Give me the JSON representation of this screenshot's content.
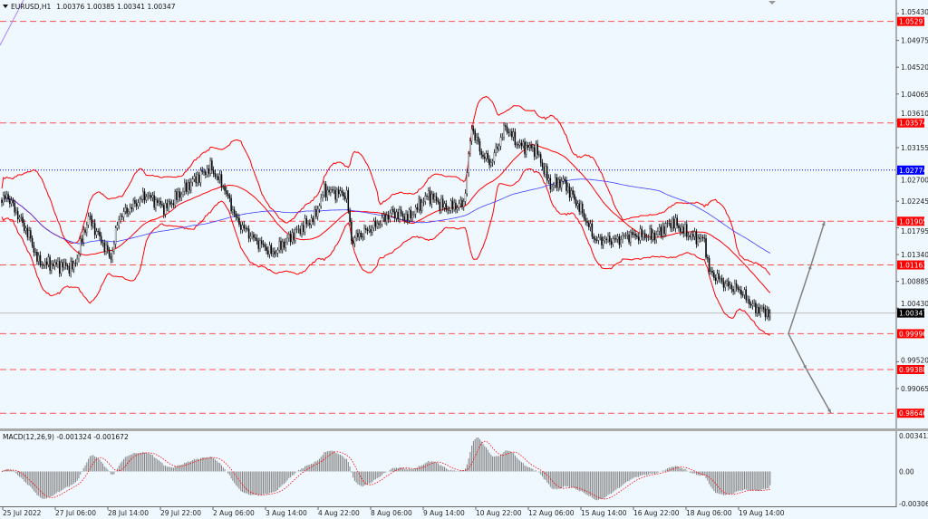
{
  "window": {
    "symbol_title": "EURUSD,H1",
    "ohlc": "1.00376 1.00385 1.00341 1.00347"
  },
  "colors": {
    "background": "#f0f8ff",
    "level_line": "#ff0000",
    "bollinger": "#ff0000",
    "moving_average": "#4040ff",
    "blue_level": "#0000ff",
    "current_price": "#000000",
    "macd_histogram": "#808080",
    "macd_signal": "#ff0000",
    "arrows": "#808080"
  },
  "chart_data": [
    {
      "type": "candlestick",
      "symbol": "EURUSD",
      "timeframe": "H1",
      "ylim": [
        0.98388,
        1.05661
      ],
      "grid": false,
      "y_ticks": [
        "1.05430",
        "1.04975",
        "1.04520",
        "1.04065",
        "1.03610",
        "1.03155",
        "1.02700",
        "1.02245",
        "1.01795",
        "1.01340",
        "1.00885",
        "1.00430",
        "0.99520",
        "0.99065"
      ],
      "x_ticks": [
        "25 Jul 2022",
        "27 Jul 06:00",
        "28 Jul 14:00",
        "29 Jul 22:00",
        "2 Aug 06:00",
        "3 Aug 14:00",
        "4 Aug 22:00",
        "8 Aug 06:00",
        "9 Aug 14:00",
        "10 Aug 22:00",
        "12 Aug 06:00",
        "15 Aug 14:00",
        "16 Aug 22:00",
        "18 Aug 06:00",
        "19 Aug 14:00"
      ],
      "approx_close_keypoints_bar_price": [
        [
          0,
          1.0222
        ],
        [
          3,
          1.02355
        ],
        [
          17,
          1.01663
        ],
        [
          23,
          1.01202
        ],
        [
          45,
          1.01125
        ],
        [
          54,
          1.01971
        ],
        [
          68,
          1.01279
        ],
        [
          73,
          1.01971
        ],
        [
          90,
          1.02355
        ],
        [
          102,
          1.02125
        ],
        [
          119,
          1.02586
        ],
        [
          130,
          1.02817
        ],
        [
          138,
          1.02509
        ],
        [
          147,
          1.01894
        ],
        [
          158,
          1.01587
        ],
        [
          169,
          1.01356
        ],
        [
          181,
          1.01663
        ],
        [
          195,
          1.01971
        ],
        [
          201,
          1.02433
        ],
        [
          215,
          1.02355
        ],
        [
          218,
          1.01587
        ],
        [
          232,
          1.01817
        ],
        [
          243,
          1.02048
        ],
        [
          254,
          1.01971
        ],
        [
          266,
          1.02355
        ],
        [
          277,
          1.02125
        ],
        [
          288,
          1.02202
        ],
        [
          293,
          1.03509
        ],
        [
          299,
          1.03048
        ],
        [
          305,
          1.02894
        ],
        [
          314,
          1.03509
        ],
        [
          322,
          1.03201
        ],
        [
          333,
          1.03125
        ],
        [
          342,
          1.02509
        ],
        [
          350,
          1.02586
        ],
        [
          362,
          1.02048
        ],
        [
          370,
          1.01587
        ],
        [
          384,
          1.01587
        ],
        [
          390,
          1.01663
        ],
        [
          407,
          1.01663
        ],
        [
          418,
          1.01894
        ],
        [
          429,
          1.01663
        ],
        [
          438,
          1.01587
        ],
        [
          441,
          1.0105
        ],
        [
          452,
          1.00819
        ],
        [
          460,
          1.00742
        ],
        [
          469,
          1.00435
        ],
        [
          479,
          1.00347
        ]
      ],
      "levels": [
        {
          "label": "1.05297",
          "value": 1.05297,
          "style": "red-dashed"
        },
        {
          "label": "1.03574",
          "value": 1.03574,
          "style": "red-dashed"
        },
        {
          "label": "1.01905",
          "value": 1.01905,
          "style": "red-dashed"
        },
        {
          "label": "1.01163",
          "value": 1.01163,
          "style": "red-dashed"
        },
        {
          "label": "0.99996",
          "value": 0.99996,
          "style": "red-dashed"
        },
        {
          "label": "0.99388",
          "value": 0.99388,
          "style": "red-dashed"
        },
        {
          "label": "0.98646",
          "value": 0.98646,
          "style": "red-dashed"
        },
        {
          "label": "1.02774",
          "value": 1.02774,
          "style": "blue-dotted"
        }
      ],
      "current_price": {
        "label": "1.00347",
        "value": 1.00347
      },
      "indicators": [
        "Bollinger Bands",
        "Moving Average"
      ],
      "projection_arrows": [
        {
          "direction": "up",
          "targets": [
            1.01163,
            1.01905
          ]
        },
        {
          "direction": "down",
          "targets": [
            0.99388,
            0.98646
          ]
        }
      ]
    },
    {
      "type": "bar",
      "title": "MACD(12,26,9) -0.001324 -0.001672",
      "name": "MACD(12,26,9)",
      "macd_value": -0.001324,
      "signal_value": -0.001672,
      "ylim": [
        -0.003065,
        0.003413
      ],
      "y_ticks": [
        "0.003413",
        "0.00",
        "-0.003065"
      ]
    }
  ]
}
